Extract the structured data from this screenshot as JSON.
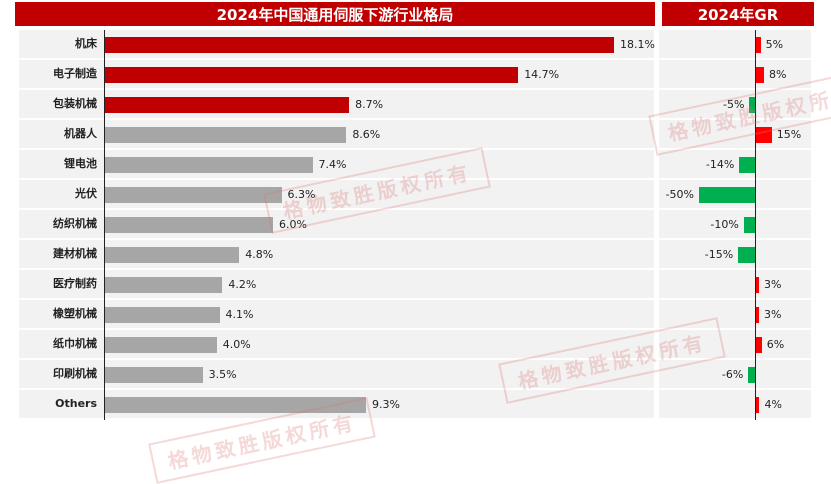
{
  "header": {
    "left_title": "2024年中国通用伺服下游行业格局",
    "right_title": "2024年GR"
  },
  "watermark": "格物致胜版权所有",
  "colors": {
    "highlight": "#c00000",
    "neutral": "#a6a6a6",
    "positive": "#ff0000",
    "negative": "#00b050"
  },
  "chart_data": [
    {
      "type": "bar",
      "orientation": "horizontal",
      "title": "2024年中国通用伺服下游行业格局",
      "categories": [
        "机床",
        "电子制造",
        "包装机械",
        "机器人",
        "锂电池",
        "光伏",
        "纺织机械",
        "建材机械",
        "医疗制药",
        "橡塑机械",
        "纸巾机械",
        "印刷机械",
        "Others"
      ],
      "values": [
        18.1,
        14.7,
        8.7,
        8.6,
        7.4,
        6.3,
        6.0,
        4.8,
        4.2,
        4.1,
        4.0,
        3.5,
        9.3
      ],
      "labels": [
        "18.1%",
        "14.7%",
        "8.7%",
        "8.6%",
        "7.4%",
        "6.3%",
        "6.0%",
        "4.8%",
        "4.2%",
        "4.1%",
        "4.0%",
        "3.5%",
        "9.3%"
      ],
      "highlighted": [
        true,
        true,
        true,
        false,
        false,
        false,
        false,
        false,
        false,
        false,
        false,
        false,
        false
      ],
      "unit": "%"
    },
    {
      "type": "bar",
      "orientation": "horizontal",
      "title": "2024年GR",
      "categories": [
        "机床",
        "电子制造",
        "包装机械",
        "机器人",
        "锂电池",
        "光伏",
        "纺织机械",
        "建材机械",
        "医疗制药",
        "橡塑机械",
        "纸巾机械",
        "印刷机械",
        "Others"
      ],
      "values": [
        5,
        8,
        -5,
        15,
        -14,
        -50,
        -10,
        -15,
        3,
        3,
        6,
        -6,
        4
      ],
      "labels": [
        "5%",
        "8%",
        "-5%",
        "15%",
        "-14%",
        "-50%",
        "-10%",
        "-15%",
        "3%",
        "3%",
        "6%",
        "-6%",
        "4%"
      ],
      "unit": "%"
    }
  ]
}
